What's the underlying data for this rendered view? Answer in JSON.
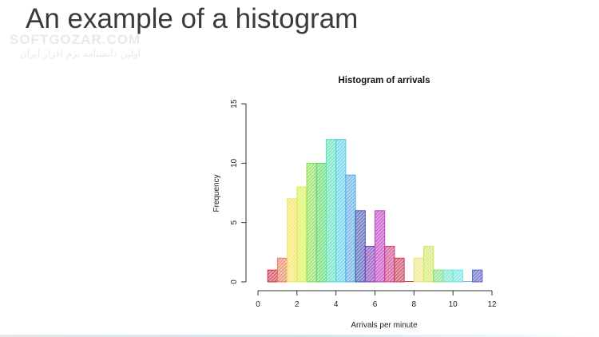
{
  "slide": {
    "title": "An example of a histogram"
  },
  "watermark": {
    "brand": "SOFTGOZAR.COM",
    "subtitle": "اولین دانشنامه نرم افزار ایران"
  },
  "chart_data": {
    "type": "bar",
    "title": "Histogram of arrivals",
    "xlabel": "Arrivals per minute",
    "ylabel": "Frequency",
    "xlim": [
      0,
      12
    ],
    "ylim": [
      0,
      15
    ],
    "xticks": [
      0,
      2,
      4,
      6,
      8,
      10,
      12
    ],
    "yticks": [
      0,
      5,
      10,
      15
    ],
    "bin_width": 0.5,
    "bin_edges": [
      0.5,
      1,
      1.5,
      2,
      2.5,
      3,
      3.5,
      4,
      4.5,
      5,
      5.5,
      6,
      6.5,
      7,
      7.5,
      8,
      8.5,
      9,
      9.5,
      10,
      10.5,
      11,
      11.5
    ],
    "values": [
      1,
      2,
      7,
      8,
      10,
      10,
      12,
      12,
      9,
      6,
      3,
      6,
      3,
      2,
      0,
      2,
      3,
      1,
      1,
      1,
      0,
      1
    ],
    "colors": [
      "#cc3344",
      "#e87c5a",
      "#f4e35c",
      "#d8ef4a",
      "#86de52",
      "#5fd66b",
      "#5be0b8",
      "#58cde6",
      "#5aa9e6",
      "#4456b5",
      "#7a3fb8",
      "#c23bc4",
      "#cf3b8a",
      "#c83a55",
      "#d44a3c",
      "#efe57c",
      "#cfe860",
      "#7fe080",
      "#70e6c8",
      "#6fe6e6",
      "#7fb8ea",
      "#5a62c4"
    ],
    "grid": false,
    "legend": "none"
  }
}
